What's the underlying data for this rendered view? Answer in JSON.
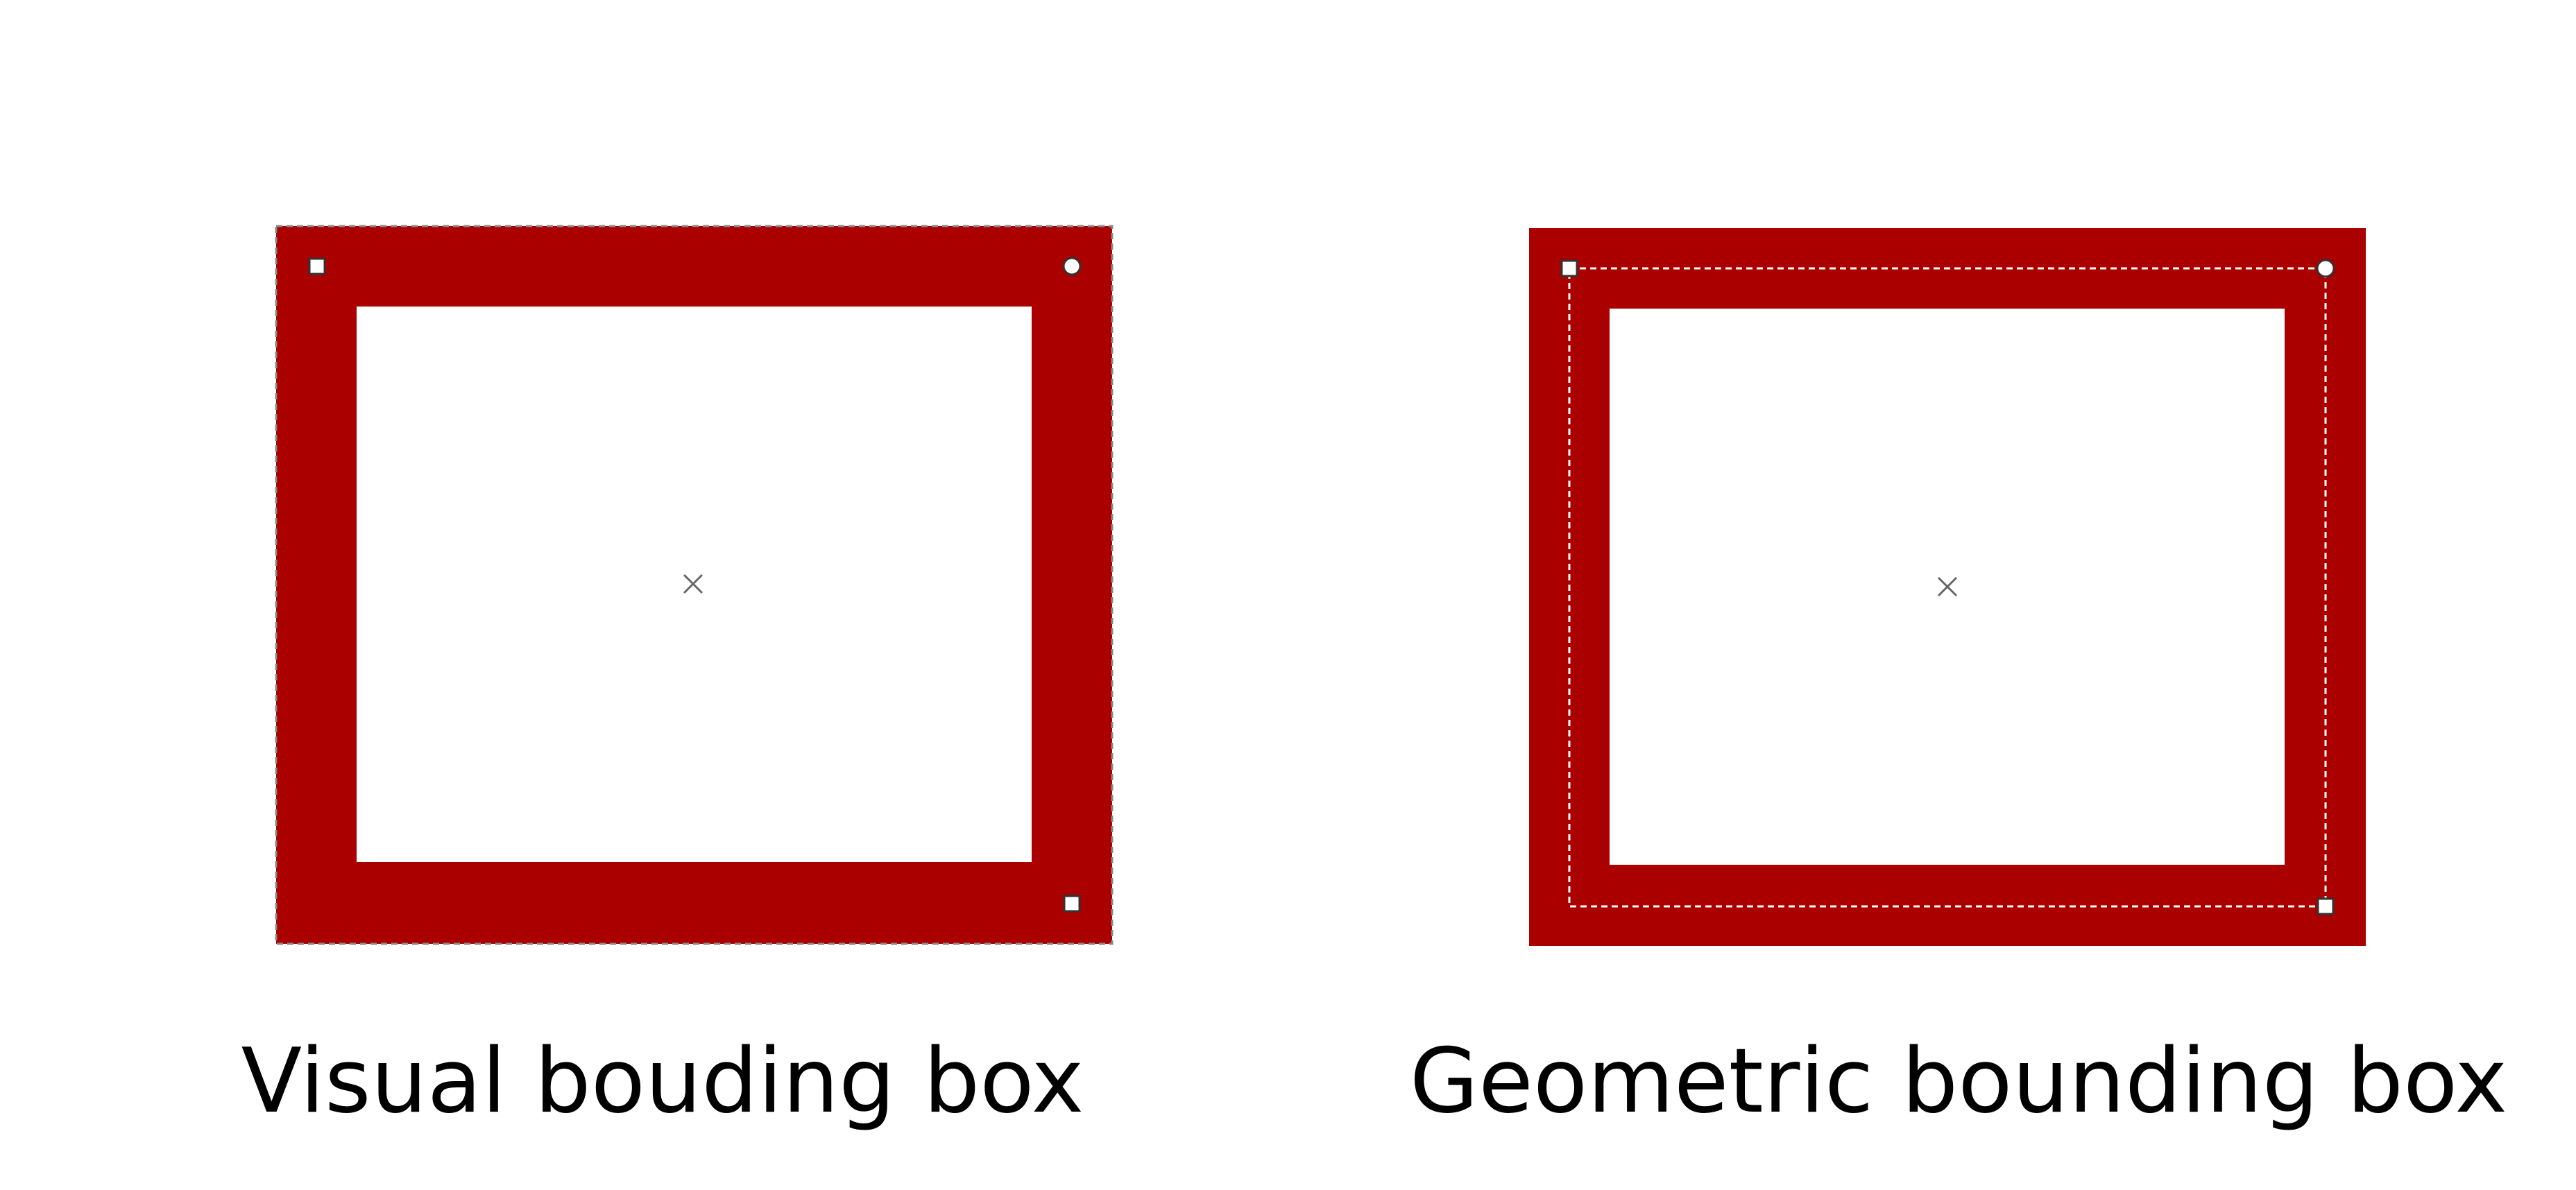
{
  "colors": {
    "stroke_fill": "#aa0000",
    "background": "#ffffff",
    "bbox_dash": "#666666",
    "handle_fill": "#ffffff",
    "handle_stroke": "#333333",
    "center_mark": "#666666"
  },
  "panels": [
    {
      "id": "visual",
      "caption": "Visual bouding box",
      "bbox_mode": "visual",
      "handles": [
        "square-top-left",
        "circle-top-right",
        "square-bottom-right"
      ],
      "center_mark": "x-cross"
    },
    {
      "id": "geometric",
      "caption": "Geometric bounding box",
      "bbox_mode": "geometric",
      "handles": [
        "square-top-left",
        "circle-top-right",
        "square-bottom-right"
      ],
      "center_mark": "x-cross"
    }
  ]
}
